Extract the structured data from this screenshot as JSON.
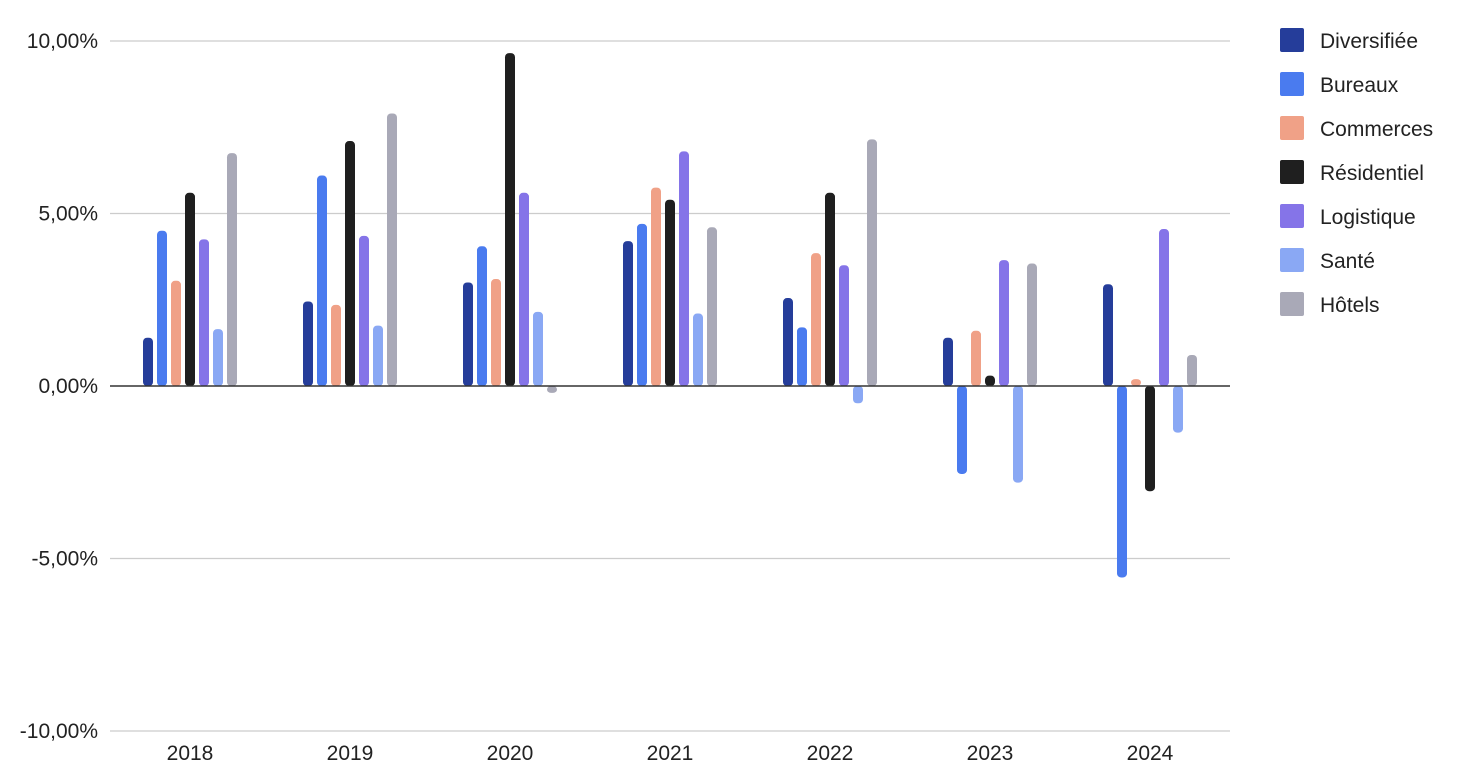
{
  "chart_data": {
    "type": "bar",
    "title": "",
    "xlabel": "",
    "ylabel": "",
    "categories": [
      "2018",
      "2019",
      "2020",
      "2021",
      "2022",
      "2023",
      "2024"
    ],
    "ylim": [
      -10,
      10
    ],
    "yticks": [
      {
        "value": 10,
        "label": "10,00%"
      },
      {
        "value": 5,
        "label": "5,00%"
      },
      {
        "value": 0,
        "label": "0,00%"
      },
      {
        "value": -5,
        "label": "-5,00%"
      },
      {
        "value": -10,
        "label": "-10,00%"
      }
    ],
    "grid": true,
    "legend_position": "right",
    "series": [
      {
        "name": "Diversifiée",
        "color": "#253d9a",
        "values": [
          1.4,
          2.45,
          3.0,
          4.2,
          2.55,
          1.4,
          2.95
        ]
      },
      {
        "name": "Bureaux",
        "color": "#4a7bef",
        "values": [
          4.5,
          6.1,
          4.05,
          4.7,
          1.7,
          -2.55,
          -5.55
        ]
      },
      {
        "name": "Commerces",
        "color": "#f0a187",
        "values": [
          3.05,
          2.35,
          3.1,
          5.75,
          3.85,
          1.6,
          0.2
        ]
      },
      {
        "name": "Résidentiel",
        "color": "#1f1f1f",
        "values": [
          5.6,
          7.1,
          9.65,
          5.4,
          5.6,
          0.3,
          -3.05
        ]
      },
      {
        "name": "Logistique",
        "color": "#8574e8",
        "values": [
          4.25,
          4.35,
          5.6,
          6.8,
          3.5,
          3.65,
          4.55
        ]
      },
      {
        "name": "Santé",
        "color": "#8aa8f4",
        "values": [
          1.65,
          1.75,
          2.15,
          2.1,
          -0.5,
          -2.8,
          -1.35
        ]
      },
      {
        "name": "Hôtels",
        "color": "#a9a9b7",
        "values": [
          6.75,
          7.9,
          -0.2,
          4.6,
          7.15,
          3.55,
          0.9
        ]
      }
    ]
  }
}
